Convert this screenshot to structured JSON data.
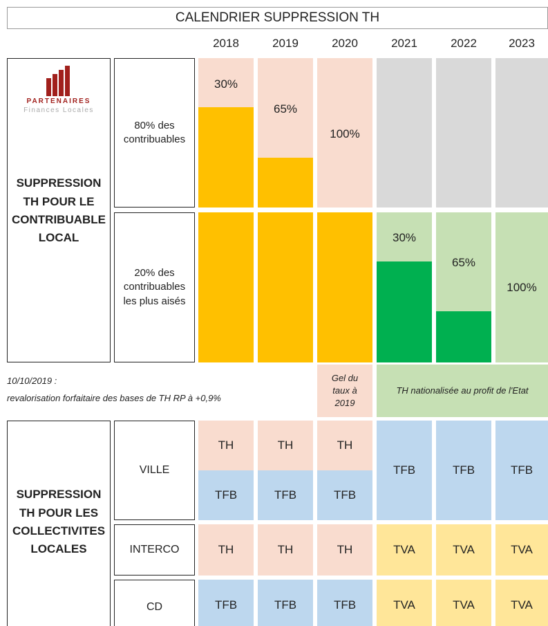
{
  "header": {
    "title": "CALENDRIER SUPPRESSION TH"
  },
  "years": [
    "2018",
    "2019",
    "2020",
    "2021",
    "2022",
    "2023"
  ],
  "logo": {
    "name": "PARTENAIRES",
    "tagline": "Finances Locales"
  },
  "section1": {
    "label": [
      "SUPPRESSION",
      "TH POUR LE",
      "CONTRIBUABLE",
      "LOCAL"
    ],
    "rows": [
      {
        "label": [
          "80% des",
          "contribuables"
        ],
        "cells": [
          "30%",
          "65%",
          "100%"
        ]
      },
      {
        "label": [
          "20% des",
          "contribuables",
          "les plus aisés"
        ],
        "cells": [
          "30%",
          "65%",
          "100%"
        ]
      }
    ]
  },
  "note": {
    "date": "10/10/2019 :",
    "text": "revalorisation forfaitaire des bases de TH RP à +0,9%",
    "freeze": [
      "Gel du",
      "taux à",
      "2019"
    ],
    "national": "TH nationalisée au profit de l'Etat"
  },
  "section2": {
    "label": [
      "SUPPRESSION",
      "TH POUR LES",
      "COLLECTIVITES",
      "LOCALES"
    ],
    "rows": [
      {
        "label": "VILLE",
        "cells": [
          [
            "TH",
            "TFB"
          ],
          [
            "TH",
            "TFB"
          ],
          [
            "TH",
            "TFB"
          ],
          "TFB",
          "TFB",
          "TFB"
        ]
      },
      {
        "label": "INTERCO",
        "cells": [
          "TH",
          "TH",
          "TH",
          "TVA",
          "TVA",
          "TVA"
        ]
      },
      {
        "label": "CD",
        "cells": [
          "TFB",
          "TFB",
          "TFB",
          "TVA",
          "TVA",
          "TVA"
        ]
      }
    ]
  }
}
